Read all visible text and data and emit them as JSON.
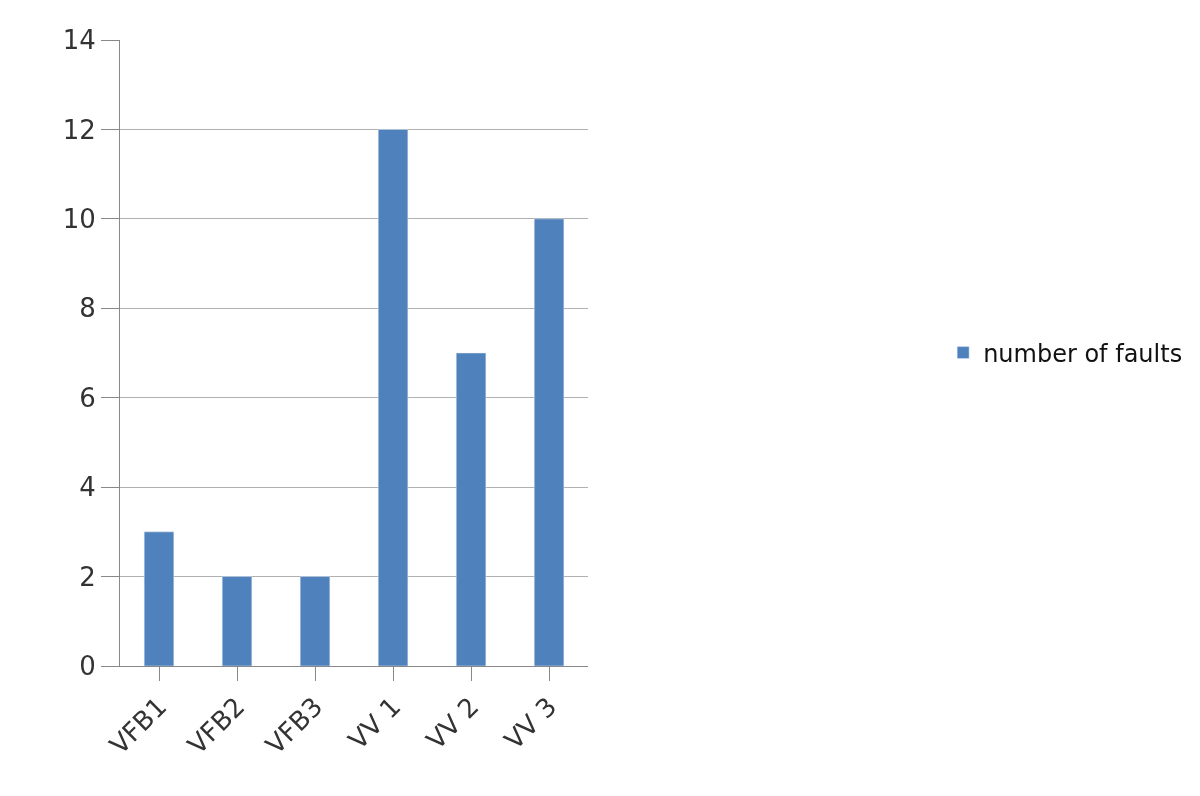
{
  "chart_data": {
    "type": "bar",
    "categories": [
      "VFB1",
      "VFB2",
      "VFB3",
      "VV 1",
      "VV 2",
      "VV 3"
    ],
    "series": [
      {
        "name": "number of faults",
        "color": "#4f81bd",
        "values": [
          3,
          2,
          2,
          12,
          7,
          10
        ]
      }
    ],
    "ylim": [
      0,
      14
    ],
    "yticks": [
      0,
      2,
      4,
      6,
      8,
      10,
      12,
      14
    ],
    "grid": "y",
    "legend": "right"
  }
}
